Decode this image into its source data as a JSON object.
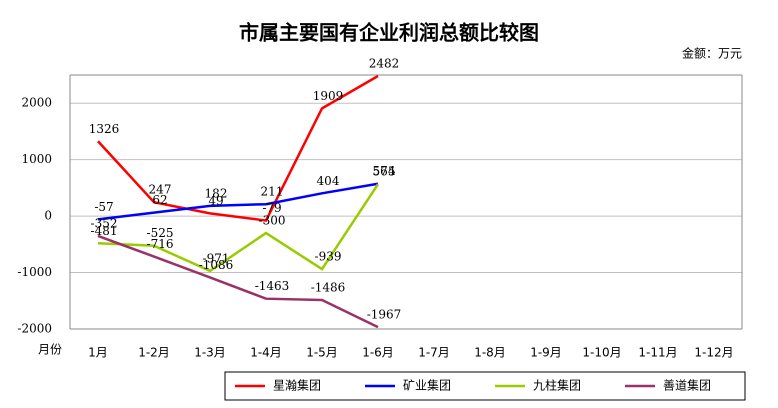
{
  "chart_data": {
    "type": "line",
    "title": "市属主要国有企业利润总额比较图",
    "unit_label": "金额：万元",
    "x_label": "月份",
    "categories": [
      "1月",
      "1-2月",
      "1-3月",
      "1-4月",
      "1-5月",
      "1-6月",
      "1-7月",
      "1-8月",
      "1-9月",
      "1-10月",
      "1-11月",
      "1-12月"
    ],
    "series": [
      {
        "name": "星瀚集团",
        "color": "#ff0000",
        "values": [
          1326,
          247,
          49,
          -79,
          1909,
          2482,
          null,
          null,
          null,
          null,
          null,
          null
        ]
      },
      {
        "name": "矿业集团",
        "color": "#0000ff",
        "values": [
          -57,
          62,
          182,
          211,
          404,
          574,
          null,
          null,
          null,
          null,
          null,
          null
        ]
      },
      {
        "name": "九柱集团",
        "color": "#99cc00",
        "values": [
          -481,
          -525,
          -971,
          -300,
          -939,
          565,
          null,
          null,
          null,
          null,
          null,
          null
        ]
      },
      {
        "name": "善道集团",
        "color": "#993366",
        "values": [
          -352,
          -716,
          -1086,
          -1463,
          -1486,
          -1967,
          null,
          null,
          null,
          null,
          null,
          null
        ]
      }
    ],
    "ylim": [
      -2000,
      2500
    ],
    "yticks": [
      -2000,
      -1000,
      0,
      1000,
      2000
    ],
    "grid": true,
    "legend": "bottom"
  }
}
